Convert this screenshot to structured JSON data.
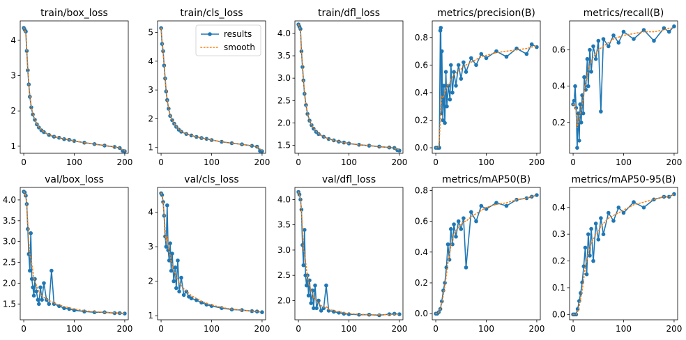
{
  "legend": {
    "results": "results",
    "smooth": "smooth"
  },
  "colors": {
    "results": "#1f77b4",
    "smooth": "#ff7f0e"
  },
  "chart_data": [
    {
      "type": "line",
      "title": "train/box_loss",
      "xlim": [
        -7,
        207
      ],
      "ylim": [
        0.8,
        4.55
      ],
      "xticks": [
        0,
        100,
        200
      ],
      "yticks": [
        1,
        2,
        3,
        4
      ],
      "yticklabels": [
        "1",
        "2",
        "3",
        "4"
      ],
      "legend": false,
      "x": [
        0,
        2,
        4,
        6,
        8,
        10,
        12,
        15,
        18,
        22,
        26,
        30,
        35,
        40,
        50,
        60,
        70,
        80,
        90,
        100,
        120,
        140,
        160,
        180,
        190,
        196,
        200
      ],
      "values": [
        4.35,
        4.3,
        4.25,
        3.7,
        3.15,
        2.75,
        2.4,
        2.1,
        1.9,
        1.75,
        1.62,
        1.53,
        1.45,
        1.4,
        1.32,
        1.27,
        1.24,
        1.2,
        1.18,
        1.15,
        1.1,
        1.06,
        1.02,
        0.98,
        0.95,
        0.87,
        0.86
      ],
      "smooth": [
        4.35,
        4.3,
        4.2,
        3.75,
        3.2,
        2.78,
        2.45,
        2.13,
        1.92,
        1.76,
        1.63,
        1.54,
        1.46,
        1.41,
        1.33,
        1.28,
        1.24,
        1.21,
        1.18,
        1.15,
        1.1,
        1.06,
        1.02,
        0.98,
        0.95,
        0.9,
        0.87
      ]
    },
    {
      "type": "line",
      "title": "train/cls_loss",
      "xlim": [
        -7,
        207
      ],
      "ylim": [
        0.8,
        5.4
      ],
      "xticks": [
        0,
        100,
        200
      ],
      "yticks": [
        1,
        2,
        3,
        4,
        5
      ],
      "yticklabels": [
        "1",
        "2",
        "3",
        "4",
        "5"
      ],
      "legend": true,
      "x": [
        0,
        2,
        4,
        6,
        8,
        10,
        12,
        15,
        18,
        22,
        26,
        30,
        35,
        40,
        50,
        60,
        70,
        80,
        90,
        100,
        120,
        140,
        160,
        180,
        190,
        196,
        200
      ],
      "values": [
        5.15,
        4.6,
        4.35,
        3.85,
        3.4,
        2.95,
        2.65,
        2.35,
        2.1,
        1.95,
        1.83,
        1.72,
        1.62,
        1.55,
        1.47,
        1.42,
        1.37,
        1.33,
        1.3,
        1.26,
        1.2,
        1.15,
        1.11,
        1.06,
        1.03,
        0.88,
        0.87
      ],
      "smooth": [
        5.15,
        4.7,
        4.35,
        3.9,
        3.45,
        3.0,
        2.68,
        2.37,
        2.12,
        1.96,
        1.84,
        1.73,
        1.63,
        1.56,
        1.48,
        1.42,
        1.37,
        1.33,
        1.3,
        1.26,
        1.2,
        1.15,
        1.11,
        1.06,
        1.03,
        0.95,
        0.9
      ]
    },
    {
      "type": "line",
      "title": "train/dfl_loss",
      "xlim": [
        -7,
        207
      ],
      "ylim": [
        1.32,
        4.28
      ],
      "xticks": [
        0,
        100,
        200
      ],
      "yticks": [
        1.5,
        2.0,
        2.5,
        3.0,
        3.5,
        4.0
      ],
      "yticklabels": [
        "1.5",
        "2.0",
        "2.5",
        "3.0",
        "3.5",
        "4.0"
      ],
      "legend": false,
      "x": [
        0,
        2,
        4,
        6,
        8,
        10,
        12,
        15,
        18,
        22,
        26,
        30,
        35,
        40,
        50,
        60,
        70,
        80,
        90,
        100,
        120,
        140,
        160,
        180,
        190,
        196,
        200
      ],
      "values": [
        4.2,
        4.15,
        4.1,
        3.6,
        3.25,
        2.95,
        2.65,
        2.4,
        2.2,
        2.05,
        1.95,
        1.87,
        1.8,
        1.75,
        1.69,
        1.64,
        1.61,
        1.58,
        1.56,
        1.54,
        1.51,
        1.49,
        1.47,
        1.45,
        1.44,
        1.39,
        1.38
      ],
      "smooth": [
        4.2,
        4.15,
        4.05,
        3.65,
        3.3,
        2.98,
        2.68,
        2.42,
        2.22,
        2.06,
        1.96,
        1.88,
        1.81,
        1.76,
        1.69,
        1.64,
        1.61,
        1.58,
        1.56,
        1.54,
        1.51,
        1.49,
        1.47,
        1.45,
        1.44,
        1.41,
        1.39
      ]
    },
    {
      "type": "line",
      "title": "metrics/precision(B)",
      "xlim": [
        -7,
        207
      ],
      "ylim": [
        -0.04,
        0.92
      ],
      "xticks": [
        0,
        100,
        200
      ],
      "yticks": [
        0.0,
        0.2,
        0.4,
        0.6,
        0.8
      ],
      "yticklabels": [
        "0.0",
        "0.2",
        "0.4",
        "0.6",
        "0.8"
      ],
      "legend": false,
      "x": [
        0,
        3,
        5,
        7,
        9,
        10,
        11,
        12,
        14,
        16,
        18,
        20,
        22,
        25,
        28,
        30,
        33,
        36,
        40,
        45,
        50,
        55,
        60,
        70,
        80,
        90,
        100,
        120,
        140,
        160,
        180,
        190,
        200
      ],
      "values": [
        0.0,
        0.0,
        0.0,
        0.0,
        0.85,
        0.87,
        0.25,
        0.7,
        0.2,
        0.45,
        0.18,
        0.55,
        0.3,
        0.45,
        0.35,
        0.6,
        0.4,
        0.55,
        0.45,
        0.6,
        0.5,
        0.62,
        0.55,
        0.65,
        0.6,
        0.68,
        0.65,
        0.7,
        0.66,
        0.72,
        0.68,
        0.75,
        0.73
      ],
      "smooth": [
        0.0,
        0.0,
        0.0,
        0.05,
        0.2,
        0.3,
        0.33,
        0.37,
        0.36,
        0.38,
        0.4,
        0.42,
        0.44,
        0.46,
        0.47,
        0.5,
        0.51,
        0.53,
        0.54,
        0.56,
        0.57,
        0.59,
        0.6,
        0.62,
        0.64,
        0.66,
        0.67,
        0.69,
        0.7,
        0.71,
        0.72,
        0.73,
        0.74
      ]
    },
    {
      "type": "line",
      "title": "metrics/recall(B)",
      "xlim": [
        -7,
        207
      ],
      "ylim": [
        0.03,
        0.76
      ],
      "xticks": [
        0,
        100,
        200
      ],
      "yticks": [
        0.2,
        0.4,
        0.6
      ],
      "yticklabels": [
        "0.2",
        "0.4",
        "0.6"
      ],
      "legend": false,
      "x": [
        0,
        2,
        4,
        6,
        8,
        10,
        12,
        14,
        16,
        18,
        20,
        22,
        25,
        28,
        30,
        33,
        36,
        40,
        45,
        50,
        55,
        60,
        70,
        80,
        90,
        100,
        120,
        140,
        160,
        180,
        190,
        200
      ],
      "values": [
        0.3,
        0.32,
        0.4,
        0.28,
        0.06,
        0.25,
        0.1,
        0.3,
        0.2,
        0.35,
        0.25,
        0.45,
        0.38,
        0.55,
        0.4,
        0.6,
        0.48,
        0.62,
        0.55,
        0.65,
        0.26,
        0.66,
        0.62,
        0.68,
        0.64,
        0.7,
        0.66,
        0.71,
        0.65,
        0.72,
        0.7,
        0.73
      ],
      "smooth": [
        0.3,
        0.3,
        0.3,
        0.26,
        0.17,
        0.2,
        0.22,
        0.25,
        0.27,
        0.3,
        0.33,
        0.37,
        0.42,
        0.46,
        0.49,
        0.52,
        0.54,
        0.56,
        0.58,
        0.6,
        0.61,
        0.62,
        0.64,
        0.66,
        0.67,
        0.68,
        0.69,
        0.7,
        0.7,
        0.71,
        0.72,
        0.72
      ]
    },
    {
      "type": "line",
      "title": "val/box_loss",
      "xlim": [
        -7,
        207
      ],
      "ylim": [
        1.12,
        4.3
      ],
      "xticks": [
        0,
        100,
        200
      ],
      "yticks": [
        1.5,
        2.0,
        2.5,
        3.0,
        3.5,
        4.0
      ],
      "yticklabels": [
        "1.5",
        "2.0",
        "2.5",
        "3.0",
        "3.5",
        "4.0"
      ],
      "legend": false,
      "x": [
        0,
        2,
        4,
        6,
        8,
        10,
        12,
        14,
        16,
        18,
        20,
        22,
        25,
        28,
        30,
        33,
        36,
        40,
        45,
        50,
        55,
        60,
        70,
        80,
        90,
        100,
        120,
        140,
        160,
        180,
        190,
        200
      ],
      "values": [
        4.2,
        4.18,
        4.1,
        3.9,
        3.3,
        2.7,
        2.3,
        3.2,
        2.1,
        1.9,
        1.7,
        2.1,
        1.8,
        1.6,
        1.5,
        1.9,
        1.6,
        2.0,
        1.6,
        1.5,
        2.3,
        1.5,
        1.45,
        1.4,
        1.38,
        1.35,
        1.32,
        1.3,
        1.3,
        1.28,
        1.28,
        1.27
      ],
      "smooth": [
        4.2,
        4.17,
        4.08,
        3.85,
        3.45,
        3.0,
        2.7,
        2.6,
        2.45,
        2.3,
        2.12,
        2.05,
        1.95,
        1.85,
        1.78,
        1.74,
        1.7,
        1.66,
        1.62,
        1.58,
        1.56,
        1.52,
        1.48,
        1.44,
        1.41,
        1.38,
        1.34,
        1.31,
        1.3,
        1.29,
        1.28,
        1.27
      ]
    },
    {
      "type": "line",
      "title": "val/cls_loss",
      "xlim": [
        -7,
        207
      ],
      "ylim": [
        0.88,
        4.72
      ],
      "xticks": [
        0,
        100,
        200
      ],
      "yticks": [
        1,
        2,
        3,
        4
      ],
      "yticklabels": [
        "1",
        "2",
        "3",
        "4"
      ],
      "legend": false,
      "x": [
        0,
        2,
        4,
        6,
        8,
        10,
        12,
        14,
        16,
        18,
        20,
        22,
        25,
        28,
        30,
        33,
        36,
        40,
        45,
        50,
        55,
        60,
        70,
        80,
        90,
        100,
        120,
        140,
        160,
        180,
        190,
        200
      ],
      "values": [
        4.55,
        4.5,
        4.3,
        3.9,
        3.3,
        3.0,
        4.2,
        2.9,
        2.6,
        3.1,
        2.3,
        2.8,
        2.0,
        2.4,
        1.8,
        2.6,
        1.7,
        2.1,
        1.6,
        1.7,
        1.55,
        1.5,
        1.45,
        1.38,
        1.32,
        1.28,
        1.22,
        1.18,
        1.16,
        1.13,
        1.12,
        1.1
      ],
      "smooth": [
        4.55,
        4.5,
        4.3,
        3.95,
        3.5,
        3.15,
        3.3,
        3.05,
        2.85,
        2.75,
        2.55,
        2.5,
        2.3,
        2.25,
        2.1,
        2.08,
        1.95,
        1.88,
        1.78,
        1.72,
        1.65,
        1.58,
        1.5,
        1.42,
        1.36,
        1.31,
        1.24,
        1.19,
        1.16,
        1.13,
        1.12,
        1.11
      ]
    },
    {
      "type": "line",
      "title": "val/dfl_loss",
      "xlim": [
        -7,
        207
      ],
      "ylim": [
        1.62,
        4.24
      ],
      "xticks": [
        0,
        100,
        200
      ],
      "yticks": [
        2.0,
        2.5,
        3.0,
        3.5,
        4.0
      ],
      "yticklabels": [
        "2.0",
        "2.5",
        "3.0",
        "3.5",
        "4.0"
      ],
      "legend": false,
      "x": [
        0,
        2,
        4,
        6,
        8,
        10,
        12,
        14,
        16,
        18,
        20,
        22,
        25,
        28,
        30,
        33,
        36,
        40,
        45,
        50,
        55,
        60,
        70,
        80,
        90,
        100,
        120,
        140,
        160,
        180,
        190,
        200
      ],
      "values": [
        4.15,
        4.1,
        4.0,
        3.8,
        3.1,
        2.7,
        3.4,
        2.5,
        2.3,
        2.5,
        2.1,
        2.4,
        1.95,
        2.2,
        1.85,
        2.3,
        1.85,
        2.0,
        1.8,
        1.85,
        2.3,
        1.8,
        1.78,
        1.76,
        1.74,
        1.73,
        1.72,
        1.72,
        1.71,
        1.73,
        1.74,
        1.73
      ],
      "smooth": [
        4.15,
        4.1,
        4.0,
        3.8,
        3.4,
        3.0,
        2.95,
        2.8,
        2.6,
        2.5,
        2.35,
        2.32,
        2.2,
        2.15,
        2.05,
        2.05,
        1.98,
        1.95,
        1.9,
        1.87,
        1.88,
        1.83,
        1.8,
        1.78,
        1.76,
        1.74,
        1.73,
        1.72,
        1.72,
        1.72,
        1.73,
        1.73
      ]
    },
    {
      "type": "line",
      "title": "metrics/mAP50(B)",
      "xlim": [
        -7,
        207
      ],
      "ylim": [
        -0.04,
        0.82
      ],
      "xticks": [
        0,
        100,
        200
      ],
      "yticks": [
        0.0,
        0.2,
        0.4,
        0.6,
        0.8
      ],
      "yticklabels": [
        "0.0",
        "0.2",
        "0.4",
        "0.6",
        "0.8"
      ],
      "legend": false,
      "x": [
        0,
        3,
        6,
        9,
        12,
        15,
        18,
        21,
        24,
        27,
        30,
        33,
        36,
        40,
        45,
        50,
        55,
        60,
        70,
        80,
        90,
        100,
        120,
        140,
        160,
        180,
        190,
        200
      ],
      "values": [
        0.0,
        0.0,
        0.01,
        0.03,
        0.08,
        0.15,
        0.2,
        0.3,
        0.45,
        0.35,
        0.55,
        0.45,
        0.58,
        0.5,
        0.6,
        0.55,
        0.62,
        0.3,
        0.66,
        0.6,
        0.7,
        0.68,
        0.72,
        0.7,
        0.74,
        0.75,
        0.76,
        0.77
      ],
      "smooth": [
        0.0,
        0.0,
        0.01,
        0.03,
        0.07,
        0.12,
        0.18,
        0.25,
        0.33,
        0.38,
        0.44,
        0.48,
        0.52,
        0.54,
        0.56,
        0.58,
        0.6,
        0.6,
        0.63,
        0.65,
        0.67,
        0.69,
        0.71,
        0.72,
        0.74,
        0.75,
        0.76,
        0.77
      ]
    },
    {
      "type": "line",
      "title": "metrics/mAP50-95(B)",
      "xlim": [
        -7,
        207
      ],
      "ylim": [
        -0.02,
        0.475
      ],
      "xticks": [
        0,
        100,
        200
      ],
      "yticks": [
        0.0,
        0.1,
        0.2,
        0.3,
        0.4
      ],
      "yticklabels": [
        "0.0",
        "0.1",
        "0.2",
        "0.3",
        "0.4"
      ],
      "legend": false,
      "x": [
        0,
        3,
        6,
        9,
        12,
        15,
        18,
        21,
        24,
        27,
        30,
        33,
        36,
        40,
        45,
        50,
        55,
        60,
        70,
        80,
        90,
        100,
        120,
        140,
        160,
        180,
        190,
        200
      ],
      "values": [
        0.0,
        0.0,
        0.0,
        0.02,
        0.05,
        0.08,
        0.12,
        0.18,
        0.25,
        0.15,
        0.3,
        0.22,
        0.32,
        0.2,
        0.34,
        0.28,
        0.36,
        0.3,
        0.38,
        0.35,
        0.4,
        0.38,
        0.42,
        0.4,
        0.43,
        0.44,
        0.44,
        0.45
      ],
      "smooth": [
        0.0,
        0.0,
        0.0,
        0.01,
        0.03,
        0.06,
        0.09,
        0.13,
        0.18,
        0.2,
        0.23,
        0.25,
        0.27,
        0.28,
        0.3,
        0.31,
        0.33,
        0.34,
        0.36,
        0.37,
        0.38,
        0.39,
        0.41,
        0.42,
        0.43,
        0.44,
        0.44,
        0.45
      ]
    }
  ]
}
